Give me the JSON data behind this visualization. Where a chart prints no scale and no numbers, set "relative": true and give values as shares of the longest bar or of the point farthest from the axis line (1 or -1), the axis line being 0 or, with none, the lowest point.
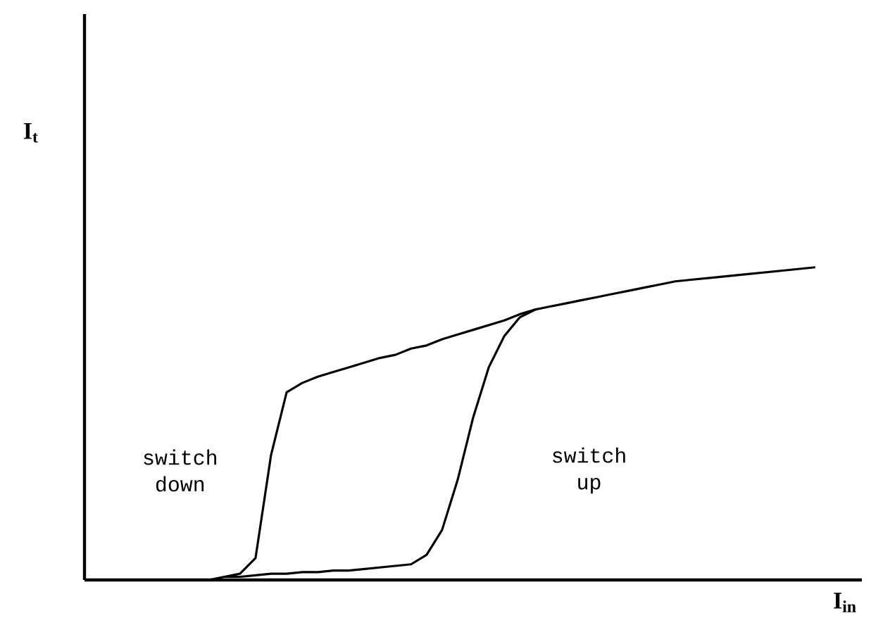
{
  "chart_data": {
    "type": "line",
    "relative": true,
    "xlabel": "I$_{in}$",
    "tick_labels": false,
    "marker": "none",
    "line_style": "solid",
    "annotations": [
      "switch down",
      "switch up",
      "I$_{t}$"
    ],
    "categories": [
      null,
      null,
      null,
      null,
      null,
      null,
      null,
      null,
      null,
      null,
      null,
      null,
      null,
      null,
      null,
      null,
      null,
      null,
      null,
      null,
      null,
      null,
      null,
      null,
      null,
      null,
      null,
      null,
      null,
      null,
      null,
      null,
      null,
      null,
      null,
      null,
      null,
      null,
      null,
      null,
      null,
      null,
      null,
      null,
      null,
      null,
      null,
      null
    ],
    "series": [
      {
        "color": "#000000",
        "values": [
          0,
          0,
          0,
          0,
          0,
          0,
          0,
          0,
          0,
          0.01,
          0.02,
          0.07,
          0.4,
          0.6,
          0.63,
          0.65,
          0.665,
          0.68,
          0.695,
          0.71,
          0.72,
          0.74,
          0.75,
          0.77,
          0.785,
          0.8,
          0.815,
          0.83,
          0.85,
          0.865,
          0.875,
          0.885,
          0.895,
          0.905,
          0.915,
          0.925,
          0.935,
          0.945,
          0.955,
          0.96,
          0.965,
          0.97,
          0.975,
          0.98,
          0.985,
          0.99,
          0.995,
          1
        ]
      },
      {
        "color": "#000000",
        "values": [
          null,
          null,
          null,
          null,
          null,
          null,
          null,
          null,
          null,
          0.01,
          0.01,
          0.015,
          0.02,
          0.02,
          0.025,
          0.025,
          0.03,
          0.03,
          0.035,
          0.04,
          0.045,
          0.05,
          0.08,
          0.16,
          0.32,
          0.52,
          0.68,
          0.78,
          0.84,
          0.865,
          null,
          null,
          null,
          null,
          null,
          null,
          null,
          null,
          null,
          null,
          null,
          null,
          null,
          null,
          null,
          null,
          null,
          null
        ]
      }
    ]
  }
}
